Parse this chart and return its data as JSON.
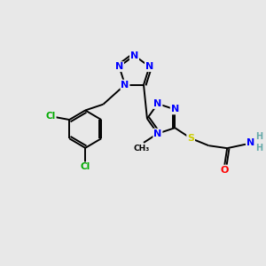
{
  "bg_color": "#e8e8e8",
  "atom_colors": {
    "N": "#0000ff",
    "C": "#000000",
    "S": "#cccc00",
    "O": "#ff0000",
    "Cl": "#00aa00",
    "H": "#66aaaa"
  },
  "bond_lw": 1.4,
  "font_size": 8.0
}
